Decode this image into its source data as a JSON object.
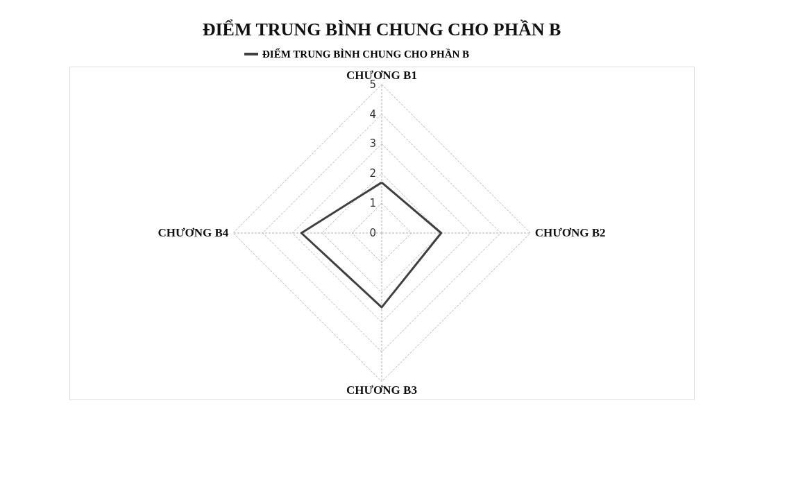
{
  "chart_data": {
    "type": "radar",
    "title": "ĐIỂM TRUNG BÌNH CHUNG CHO PHẦN B",
    "categories": [
      "CHƯƠNG B1",
      "CHƯƠNG B2",
      "CHƯƠNG B3",
      "CHƯƠNG B4"
    ],
    "series": [
      {
        "name": "ĐIỂM TRUNG BÌNH CHUNG CHO PHẦN B",
        "color": "#404040",
        "values": [
          1.7,
          2.0,
          2.5,
          2.7
        ]
      }
    ],
    "ylim": [
      0,
      5
    ],
    "yticks": [
      0,
      1,
      2,
      3,
      4,
      5
    ],
    "grid": true,
    "legend": "top",
    "marker": "none",
    "line_style": "solid"
  }
}
